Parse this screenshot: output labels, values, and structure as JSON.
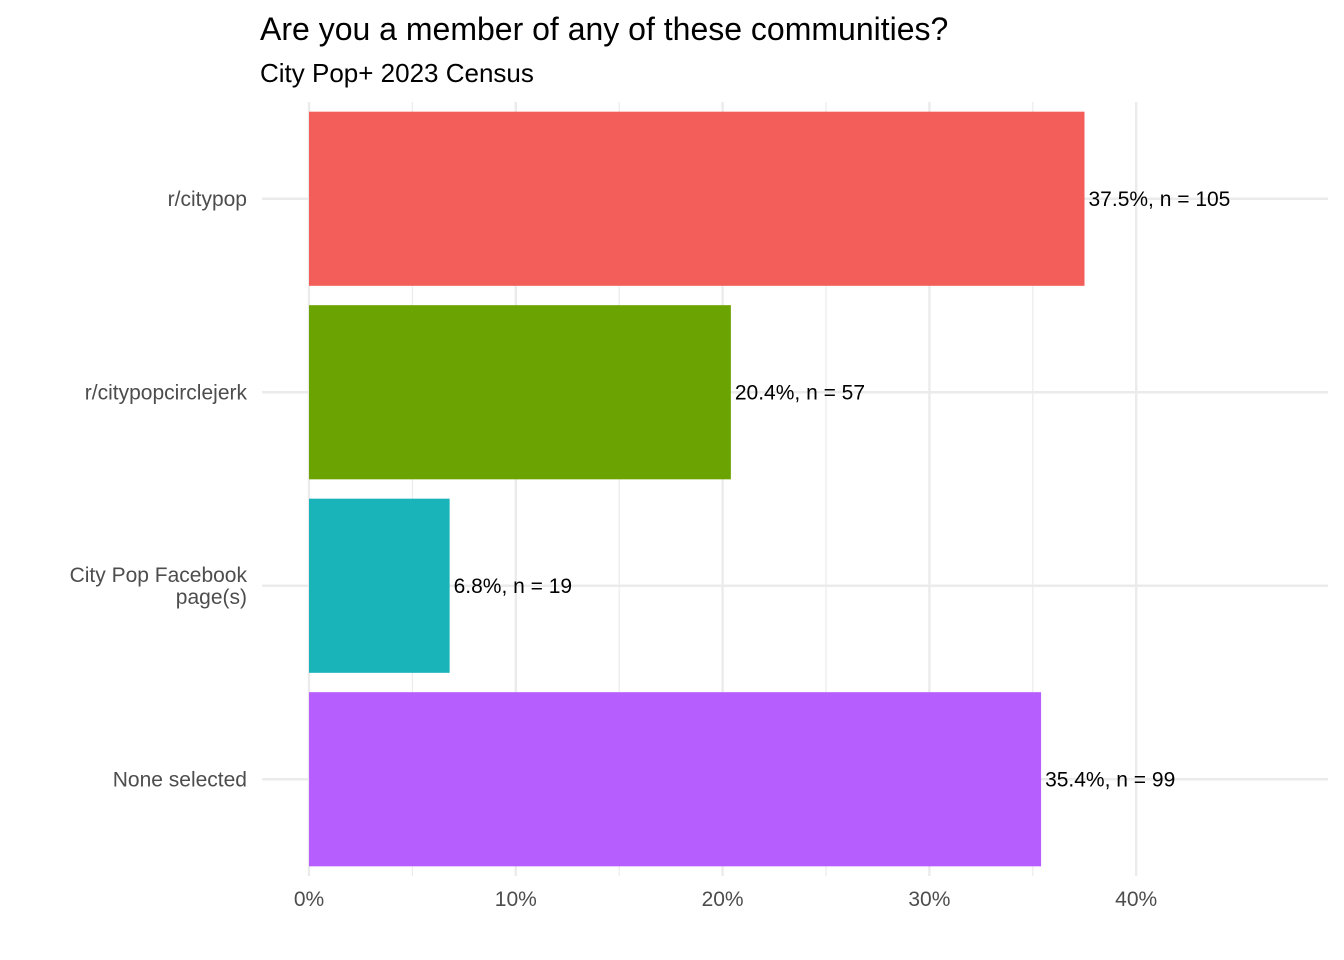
{
  "chart_data": {
    "type": "bar",
    "orientation": "horizontal",
    "title": "Are you a member of any of these communities?",
    "subtitle": "City Pop+ 2023 Census",
    "xlabel": "",
    "ylabel": "",
    "categories": [
      [
        "r/citypop"
      ],
      [
        "r/citypopcirclejerk"
      ],
      [
        "City Pop Facebook",
        "page(s)"
      ],
      [
        "None selected"
      ]
    ],
    "values": [
      37.5,
      20.4,
      6.8,
      35.4
    ],
    "labels": [
      "37.5%, n = 105",
      "20.4%, n = 57",
      "6.8%, n = 19",
      "35.4%, n = 99"
    ],
    "colors": [
      "#F35E5A",
      "#6BA402",
      "#18B4B9",
      "#B75EFE"
    ],
    "xlim": [
      0,
      45
    ],
    "x_ticks": [
      0,
      10,
      20,
      30,
      40
    ],
    "x_tick_labels": [
      "0%",
      "10%",
      "20%",
      "30%",
      "40%"
    ],
    "grid": true,
    "legend": "none"
  }
}
